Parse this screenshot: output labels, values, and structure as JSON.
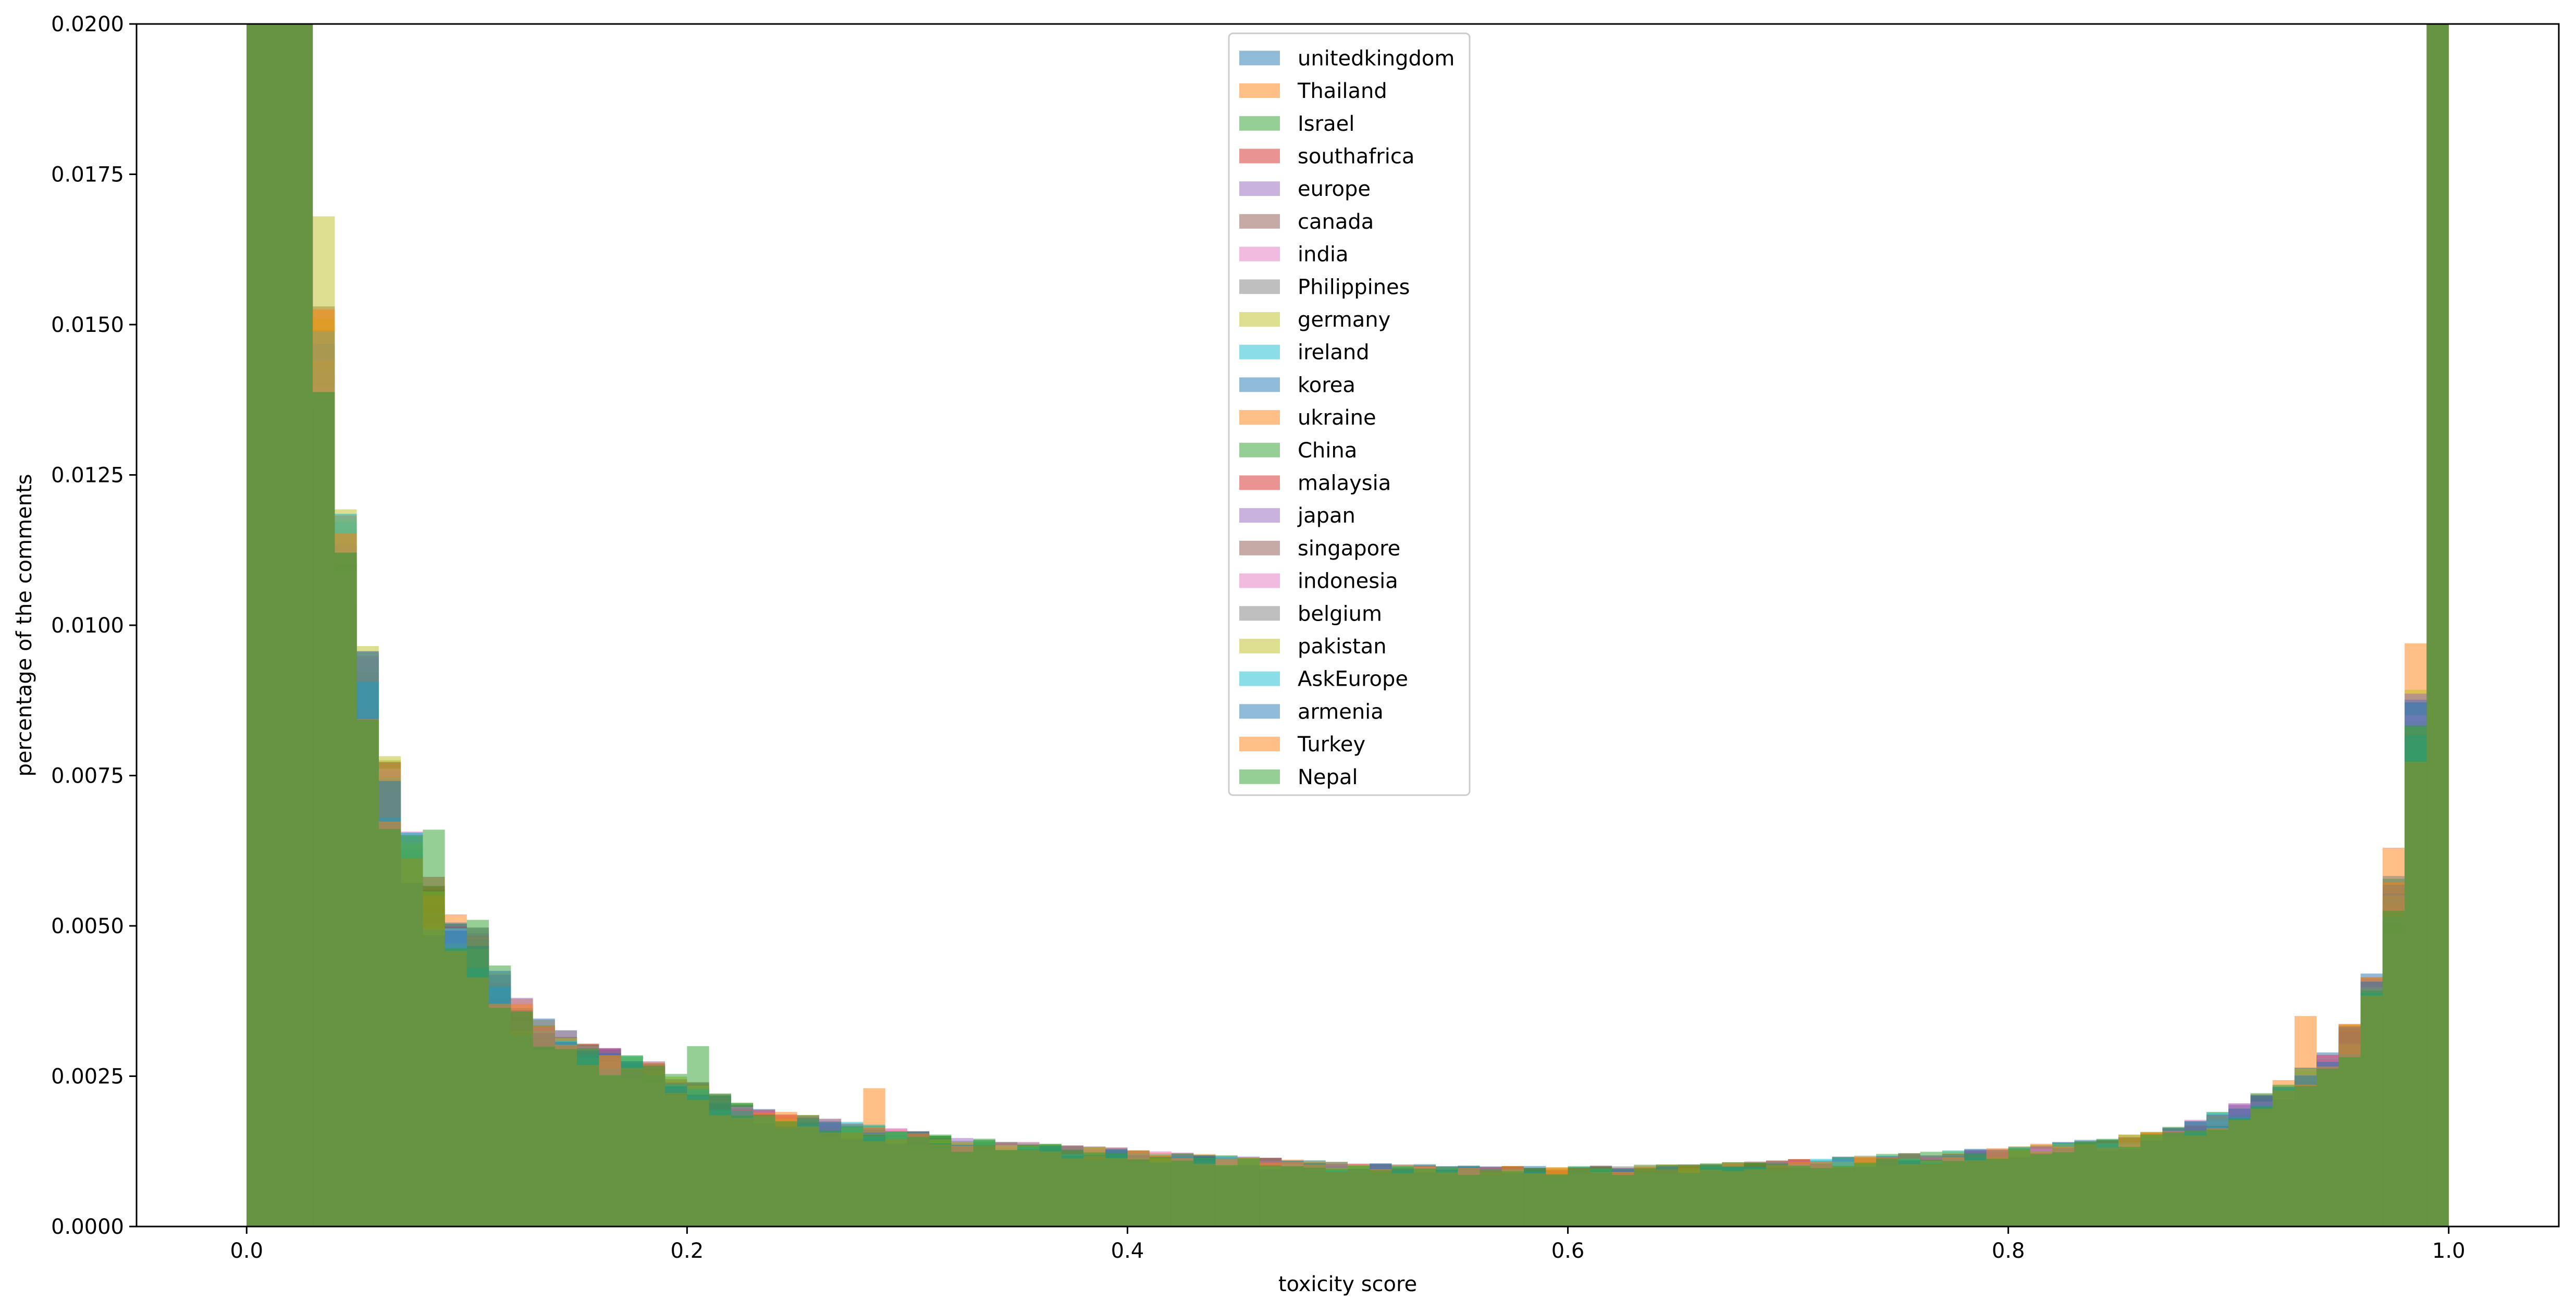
{
  "chart_data": {
    "type": "bar",
    "title": "",
    "xlabel": "toxicity score",
    "ylabel": "percentage of the comments",
    "xlim": [
      -0.05,
      1.05
    ],
    "ylim": [
      0,
      0.02
    ],
    "x_ticks": [
      "0.0",
      "0.2",
      "0.4",
      "0.6",
      "0.8",
      "1.0"
    ],
    "x_tick_values": [
      0.0,
      0.2,
      0.4,
      0.6,
      0.8,
      1.0
    ],
    "y_ticks": [
      "0.0000",
      "0.0025",
      "0.0050",
      "0.0075",
      "0.0100",
      "0.0125",
      "0.0150",
      "0.0175",
      "0.0200"
    ],
    "y_tick_values": [
      0.0,
      0.0025,
      0.005,
      0.0075,
      0.01,
      0.0125,
      0.015,
      0.0175,
      0.02
    ],
    "grid": false,
    "legend_position": "top-center",
    "bin_width": 0.01,
    "bin_edges": [
      0.0,
      1.0
    ],
    "bar_opacity": 0.5,
    "representative_bin_values": [
      0.03,
      0.03,
      0.03,
      0.0145,
      0.0113,
      0.0092,
      0.0074,
      0.0062,
      0.0055,
      0.0049,
      0.0047,
      0.0041,
      0.0036,
      0.0033,
      0.0031,
      0.0029,
      0.0028,
      0.0027,
      0.0026,
      0.0024,
      0.0023,
      0.0021,
      0.00195,
      0.00185,
      0.0018,
      0.00175,
      0.0017,
      0.00165,
      0.0016,
      0.00155,
      0.0015,
      0.00145,
      0.0014,
      0.00138,
      0.00135,
      0.00133,
      0.0013,
      0.00128,
      0.00126,
      0.00124,
      0.0012,
      0.00118,
      0.00116,
      0.00114,
      0.00112,
      0.0011,
      0.00108,
      0.00106,
      0.00104,
      0.00102,
      0.001,
      0.001,
      0.00099,
      0.00098,
      0.00097,
      0.00096,
      0.00096,
      0.00095,
      0.00095,
      0.00095,
      0.00095,
      0.00096,
      0.00096,
      0.00097,
      0.00098,
      0.00099,
      0.001,
      0.00101,
      0.00102,
      0.00104,
      0.00106,
      0.00108,
      0.0011,
      0.00112,
      0.00114,
      0.00116,
      0.00118,
      0.0012,
      0.00122,
      0.00125,
      0.00128,
      0.0013,
      0.00133,
      0.00136,
      0.0014,
      0.00145,
      0.0015,
      0.00158,
      0.00168,
      0.0018,
      0.00195,
      0.0021,
      0.0023,
      0.0025,
      0.0028,
      0.0032,
      0.004,
      0.0055,
      0.0085,
      0.03
    ],
    "highlights": [
      {
        "series": "germany",
        "x": 0.035,
        "value": 0.0168
      },
      {
        "series": "Nepal",
        "x": 0.085,
        "value": 0.0066
      },
      {
        "series": "Nepal",
        "x": 0.105,
        "value": 0.0051
      },
      {
        "series": "Nepal",
        "x": 0.205,
        "value": 0.003
      },
      {
        "series": "Thailand",
        "x": 0.285,
        "value": 0.0023
      },
      {
        "series": "Thailand",
        "x": 0.935,
        "value": 0.0035
      },
      {
        "series": "Thailand",
        "x": 0.975,
        "value": 0.0063
      },
      {
        "series": "Thailand",
        "x": 0.985,
        "value": 0.0097
      }
    ],
    "series": [
      {
        "name": "unitedkingdom",
        "color": "#1f77b4"
      },
      {
        "name": "Thailand",
        "color": "#ff7f0e"
      },
      {
        "name": "Israel",
        "color": "#2ca02c"
      },
      {
        "name": "southafrica",
        "color": "#d62728"
      },
      {
        "name": "europe",
        "color": "#9467bd"
      },
      {
        "name": "canada",
        "color": "#8c564b"
      },
      {
        "name": "india",
        "color": "#e377c2"
      },
      {
        "name": "Philippines",
        "color": "#7f7f7f"
      },
      {
        "name": "germany",
        "color": "#bcbd22"
      },
      {
        "name": "ireland",
        "color": "#17becf"
      },
      {
        "name": "korea",
        "color": "#1f77b4"
      },
      {
        "name": "ukraine",
        "color": "#ff7f0e"
      },
      {
        "name": "China",
        "color": "#2ca02c"
      },
      {
        "name": "malaysia",
        "color": "#d62728"
      },
      {
        "name": "japan",
        "color": "#9467bd"
      },
      {
        "name": "singapore",
        "color": "#8c564b"
      },
      {
        "name": "indonesia",
        "color": "#e377c2"
      },
      {
        "name": "belgium",
        "color": "#7f7f7f"
      },
      {
        "name": "pakistan",
        "color": "#bcbd22"
      },
      {
        "name": "AskEurope",
        "color": "#17becf"
      },
      {
        "name": "armenia",
        "color": "#1f77b4"
      },
      {
        "name": "Turkey",
        "color": "#ff7f0e"
      },
      {
        "name": "Nepal",
        "color": "#2ca02c"
      }
    ]
  }
}
